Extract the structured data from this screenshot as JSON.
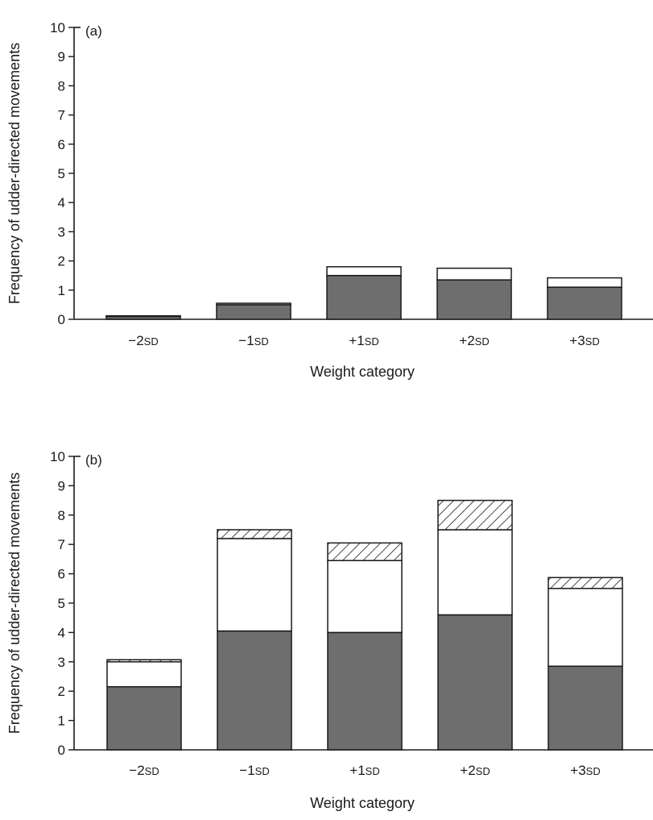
{
  "colors": {
    "background": "#ffffff",
    "ink": "#1a1a1a",
    "segment_dark": "#6e6e6e",
    "segment_white": "#ffffff",
    "segment_hatched": "#ffffff"
  },
  "chart_data": [
    {
      "type": "bar",
      "stacked": true,
      "panel_label": "(a)",
      "xlabel": "Weight category",
      "ylabel": "Frequency of udder-directed movements",
      "ylim": [
        0,
        10
      ],
      "yticks": [
        0,
        1,
        2,
        3,
        4,
        5,
        6,
        7,
        8,
        9,
        10
      ],
      "categories": [
        {
          "sign": "−2",
          "unit": "SD"
        },
        {
          "sign": "−1",
          "unit": "SD"
        },
        {
          "sign": "+1",
          "unit": "SD"
        },
        {
          "sign": "+2",
          "unit": "SD"
        },
        {
          "sign": "+3",
          "unit": "SD"
        }
      ],
      "series": [
        {
          "fill": "dark",
          "values": [
            0.1,
            0.5,
            1.5,
            1.35,
            1.1
          ]
        },
        {
          "fill": "white",
          "values": [
            0.02,
            0.05,
            0.3,
            0.4,
            0.32
          ]
        },
        {
          "fill": "hatched",
          "values": [
            0,
            0,
            0,
            0,
            0
          ]
        }
      ],
      "grid": false,
      "legend": "none"
    },
    {
      "type": "bar",
      "stacked": true,
      "panel_label": "(b)",
      "xlabel": "Weight category",
      "ylabel": "Frequency of udder-directed movements",
      "ylim": [
        0,
        10
      ],
      "yticks": [
        0,
        1,
        2,
        3,
        4,
        5,
        6,
        7,
        8,
        9,
        10
      ],
      "categories": [
        {
          "sign": "−2",
          "unit": "SD"
        },
        {
          "sign": "−1",
          "unit": "SD"
        },
        {
          "sign": "+1",
          "unit": "SD"
        },
        {
          "sign": "+2",
          "unit": "SD"
        },
        {
          "sign": "+3",
          "unit": "SD"
        }
      ],
      "series": [
        {
          "fill": "dark",
          "values": [
            2.15,
            4.05,
            4.0,
            4.6,
            2.85
          ]
        },
        {
          "fill": "white",
          "values": [
            0.85,
            3.15,
            2.45,
            2.9,
            2.65
          ]
        },
        {
          "fill": "hatched",
          "values": [
            0.07,
            0.3,
            0.6,
            1.0,
            0.37
          ]
        }
      ],
      "grid": false,
      "legend": "none"
    }
  ]
}
